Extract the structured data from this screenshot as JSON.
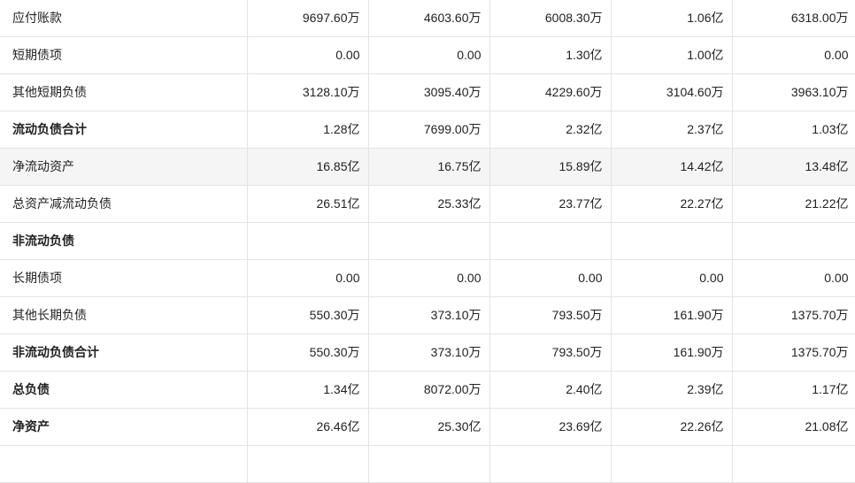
{
  "rows": [
    {
      "label": "应付账款",
      "bold": false,
      "shaded": false,
      "values": [
        "9697.60万",
        "4603.60万",
        "6008.30万",
        "1.06亿",
        "6318.00万"
      ]
    },
    {
      "label": "短期债项",
      "bold": false,
      "shaded": false,
      "values": [
        "0.00",
        "0.00",
        "1.30亿",
        "1.00亿",
        "0.00"
      ]
    },
    {
      "label": "其他短期负债",
      "bold": false,
      "shaded": false,
      "values": [
        "3128.10万",
        "3095.40万",
        "4229.60万",
        "3104.60万",
        "3963.10万"
      ]
    },
    {
      "label": "流动负债合计",
      "bold": true,
      "shaded": false,
      "values": [
        "1.28亿",
        "7699.00万",
        "2.32亿",
        "2.37亿",
        "1.03亿"
      ]
    },
    {
      "label": "净流动资产",
      "bold": false,
      "shaded": true,
      "values": [
        "16.85亿",
        "16.75亿",
        "15.89亿",
        "14.42亿",
        "13.48亿"
      ]
    },
    {
      "label": "总资产减流动负债",
      "bold": false,
      "shaded": false,
      "values": [
        "26.51亿",
        "25.33亿",
        "23.77亿",
        "22.27亿",
        "21.22亿"
      ]
    },
    {
      "label": "非流动负债",
      "bold": true,
      "shaded": false,
      "values": [
        "",
        "",
        "",
        "",
        ""
      ]
    },
    {
      "label": "长期债项",
      "bold": false,
      "shaded": false,
      "values": [
        "0.00",
        "0.00",
        "0.00",
        "0.00",
        "0.00"
      ]
    },
    {
      "label": "其他长期负债",
      "bold": false,
      "shaded": false,
      "values": [
        "550.30万",
        "373.10万",
        "793.50万",
        "161.90万",
        "1375.70万"
      ]
    },
    {
      "label": "非流动负债合计",
      "bold": true,
      "shaded": false,
      "values": [
        "550.30万",
        "373.10万",
        "793.50万",
        "161.90万",
        "1375.70万"
      ]
    },
    {
      "label": "总负债",
      "bold": true,
      "shaded": false,
      "values": [
        "1.34亿",
        "8072.00万",
        "2.40亿",
        "2.39亿",
        "1.17亿"
      ]
    },
    {
      "label": "净资产",
      "bold": true,
      "shaded": false,
      "values": [
        "26.46亿",
        "25.30亿",
        "23.69亿",
        "22.26亿",
        "21.08亿"
      ]
    },
    {
      "label": "",
      "bold": false,
      "shaded": false,
      "values": [
        "",
        "",
        "",
        "",
        ""
      ]
    }
  ]
}
